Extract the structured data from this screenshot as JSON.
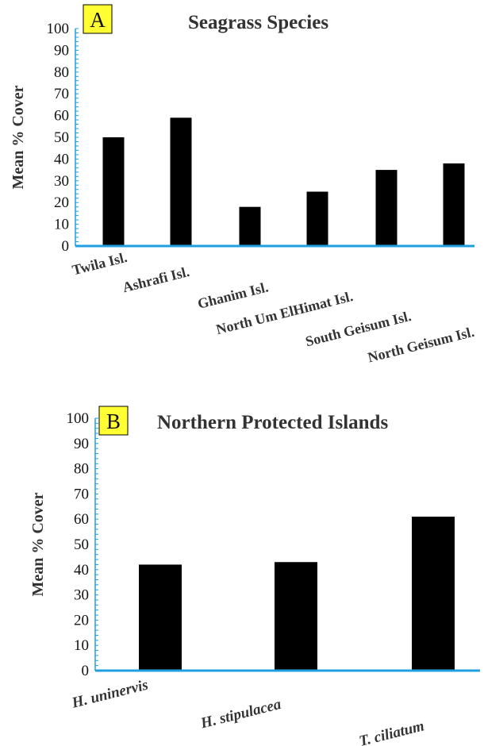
{
  "panel_colors": {
    "axis": "#1f9fe0",
    "bar": "#000000",
    "letter_box": "#ffff33"
  },
  "chart_data": [
    {
      "type": "bar",
      "panel_letter": "A",
      "title": "Seagrass Species",
      "xlabel": "",
      "ylabel": "Mean % Cover",
      "ylim": [
        0,
        100
      ],
      "yticks": [
        0,
        10,
        20,
        30,
        40,
        50,
        60,
        70,
        80,
        90,
        100
      ],
      "categories": [
        "Twila Isl.",
        "Ashrafi  Isl.",
        "Ghanim Isl.",
        "North Um ElHimat Isl.",
        "South Geisum Isl.",
        "North Geisum  Isl."
      ],
      "values": [
        50,
        59,
        18,
        25,
        35,
        38
      ],
      "category_style": "normal"
    },
    {
      "type": "bar",
      "panel_letter": "B",
      "title": "Northern Protected Islands",
      "xlabel": "",
      "ylabel": "Mean % Cover",
      "ylim": [
        0,
        100
      ],
      "yticks": [
        0,
        10,
        20,
        30,
        40,
        50,
        60,
        70,
        80,
        90,
        100
      ],
      "categories": [
        "H. uninervis",
        "H. stipulacea",
        "T. ciliatum"
      ],
      "values": [
        42,
        43,
        61
      ],
      "category_style": "italic"
    }
  ]
}
